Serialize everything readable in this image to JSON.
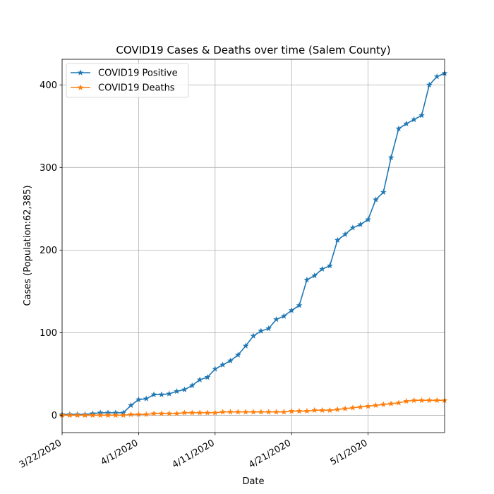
{
  "chart_data": {
    "type": "line",
    "title": "COVID19 Cases & Deaths over time (Salem County)",
    "xlabel": "Date",
    "ylabel": "Cases (Population:62,385)",
    "x_start": "3/22/2020",
    "x_tick_labels": [
      "3/22/2020",
      "4/1/2020",
      "4/11/2020",
      "4/21/2020",
      "5/1/2020"
    ],
    "y_ticks": [
      0,
      100,
      200,
      300,
      400
    ],
    "xlim": [
      "3/22/2020",
      "5/11/2020"
    ],
    "ylim": [
      -21,
      431
    ],
    "grid": true,
    "legend_position": "upper-left",
    "marker": "star",
    "series": [
      {
        "name": "COVID19 Positive",
        "color": "#1f77b4",
        "x": [
          "3/22/2020",
          "3/23/2020",
          "3/24/2020",
          "3/25/2020",
          "3/26/2020",
          "3/27/2020",
          "3/28/2020",
          "3/29/2020",
          "3/30/2020",
          "3/31/2020",
          "4/1/2020",
          "4/2/2020",
          "4/3/2020",
          "4/4/2020",
          "4/5/2020",
          "4/6/2020",
          "4/7/2020",
          "4/8/2020",
          "4/9/2020",
          "4/10/2020",
          "4/11/2020",
          "4/12/2020",
          "4/13/2020",
          "4/14/2020",
          "4/15/2020",
          "4/16/2020",
          "4/17/2020",
          "4/18/2020",
          "4/19/2020",
          "4/20/2020",
          "4/21/2020",
          "4/22/2020",
          "4/23/2020",
          "4/24/2020",
          "4/25/2020",
          "4/26/2020",
          "4/27/2020",
          "4/28/2020",
          "4/29/2020",
          "4/30/2020",
          "5/1/2020",
          "5/2/2020",
          "5/3/2020",
          "5/4/2020",
          "5/5/2020",
          "5/6/2020",
          "5/7/2020",
          "5/8/2020",
          "5/9/2020",
          "5/10/2020",
          "5/11/2020"
        ],
        "values": [
          1,
          1,
          1,
          1,
          2,
          3,
          3,
          3,
          3,
          12,
          19,
          20,
          25,
          25,
          26,
          29,
          31,
          36,
          43,
          46,
          56,
          61,
          66,
          73,
          84,
          96,
          102,
          105,
          116,
          120,
          127,
          133,
          164,
          169,
          177,
          181,
          212,
          219,
          227,
          231,
          237,
          261,
          270,
          312,
          347,
          353,
          358,
          363,
          400,
          410,
          414
        ]
      },
      {
        "name": "COVID19 Deaths",
        "color": "#ff7f0e",
        "x": [
          "3/22/2020",
          "3/23/2020",
          "3/24/2020",
          "3/25/2020",
          "3/26/2020",
          "3/27/2020",
          "3/28/2020",
          "3/29/2020",
          "3/30/2020",
          "3/31/2020",
          "4/1/2020",
          "4/2/2020",
          "4/3/2020",
          "4/4/2020",
          "4/5/2020",
          "4/6/2020",
          "4/7/2020",
          "4/8/2020",
          "4/9/2020",
          "4/10/2020",
          "4/11/2020",
          "4/12/2020",
          "4/13/2020",
          "4/14/2020",
          "4/15/2020",
          "4/16/2020",
          "4/17/2020",
          "4/18/2020",
          "4/19/2020",
          "4/20/2020",
          "4/21/2020",
          "4/22/2020",
          "4/23/2020",
          "4/24/2020",
          "4/25/2020",
          "4/26/2020",
          "4/27/2020",
          "4/28/2020",
          "4/29/2020",
          "4/30/2020",
          "5/1/2020",
          "5/2/2020",
          "5/3/2020",
          "5/4/2020",
          "5/5/2020",
          "5/6/2020",
          "5/7/2020",
          "5/8/2020",
          "5/9/2020",
          "5/10/2020",
          "5/11/2020"
        ],
        "values": [
          0,
          0,
          0,
          0,
          0,
          0,
          0,
          0,
          0,
          1,
          1,
          1,
          2,
          2,
          2,
          2,
          3,
          3,
          3,
          3,
          3,
          4,
          4,
          4,
          4,
          4,
          4,
          4,
          4,
          4,
          5,
          5,
          5,
          6,
          6,
          6,
          7,
          8,
          9,
          10,
          11,
          12,
          13,
          14,
          15,
          17,
          18,
          18,
          18,
          18,
          18
        ]
      }
    ]
  }
}
